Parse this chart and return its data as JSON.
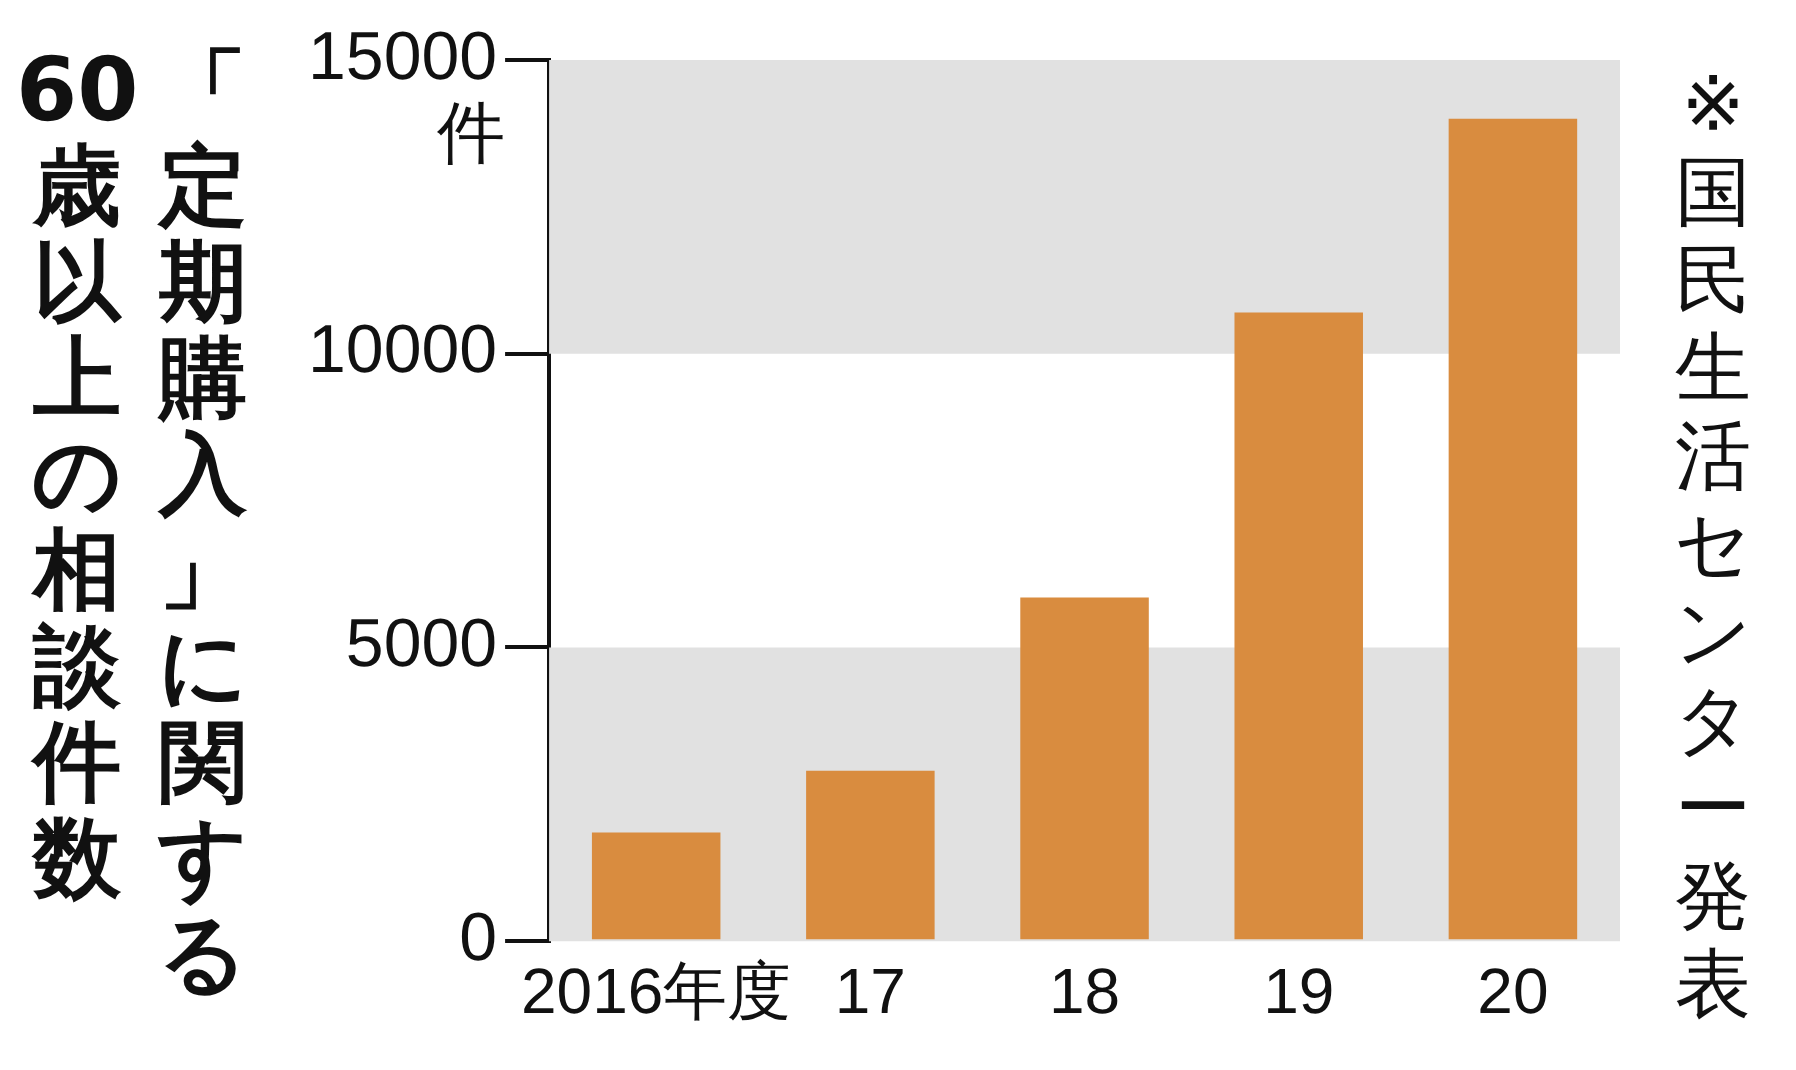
{
  "chart_data": {
    "type": "bar",
    "title": "「定期購入」に関する",
    "subtitle": "60歳以上の相談件数",
    "ylabel": "件",
    "categories": [
      "2016年度",
      "17",
      "18",
      "19",
      "20"
    ],
    "values": [
      1850,
      2900,
      5850,
      10700,
      14000
    ],
    "color": "#d98c3f",
    "ylim": [
      0,
      15000
    ],
    "yticks": [
      0,
      5000,
      10000,
      15000
    ],
    "bands": [
      {
        "axis": "y",
        "from": 0,
        "to": 5000,
        "color": "#e1e1e1"
      },
      {
        "axis": "y",
        "from": 10000,
        "to": 15000,
        "color": "#e1e1e1"
      }
    ],
    "annotations": [
      "※国民生活センター発表"
    ]
  }
}
